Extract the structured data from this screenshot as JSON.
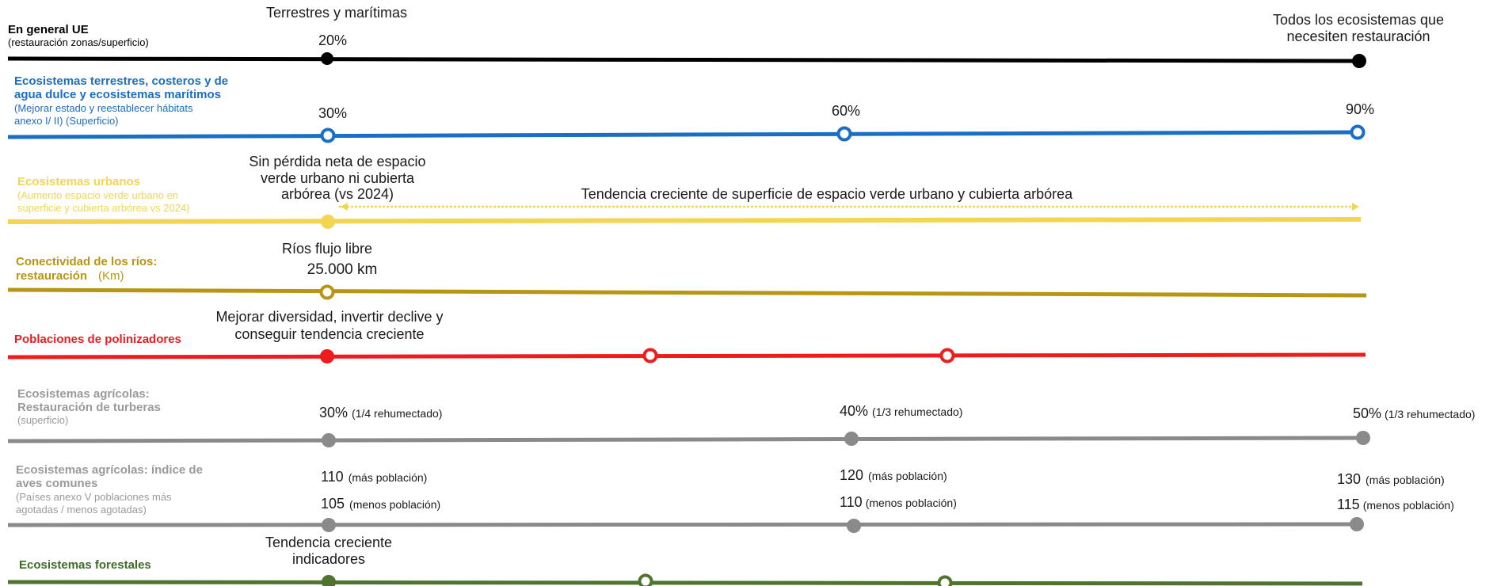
{
  "colors": {
    "eu": "#000000",
    "blue": "#1a6fc4",
    "yellow": "#f2d653",
    "olive": "#b89614",
    "red": "#ee1c1c",
    "grey": "#8a8a8a",
    "greyLabel": "#9a9a9a",
    "green": "#4f7430",
    "greenLabel": "#3f6b25",
    "text": "#1a1a1a"
  },
  "rows": [
    {
      "id": "eu",
      "title_lines": [
        "En general UE"
      ],
      "sub_lines": [
        "(restauración zonas/superficio)"
      ],
      "annotations": [
        {
          "id": "eu-top",
          "lines": [
            "Terrestres y marítimas"
          ]
        },
        {
          "id": "eu-20",
          "lines": [
            "20%"
          ]
        },
        {
          "id": "eu-end",
          "lines": [
            "Todos los ecosistemas que",
            "necesiten restauración"
          ]
        }
      ]
    },
    {
      "id": "blue",
      "title_lines": [
        "Ecosistemas terrestres, costeros y de",
        "agua dulce y ecosistemas marítimos"
      ],
      "sub_lines": [
        "(Mejorar estado y reestablecer hábitats",
        "anexo I/ II) (Superficio)"
      ],
      "annotations": [
        {
          "id": "blue-30",
          "lines": [
            "30%"
          ]
        },
        {
          "id": "blue-60",
          "lines": [
            "60%"
          ]
        },
        {
          "id": "blue-90",
          "lines": [
            "90%"
          ]
        }
      ]
    },
    {
      "id": "yellow",
      "title_lines": [
        "Ecosistemas urbanos"
      ],
      "sub_lines": [
        "(Aumento espacio verde urbano en",
        "superficie y cubierta arbórea vs 2024)"
      ],
      "annotations": [
        {
          "id": "yellow-start",
          "lines": [
            "Sin pérdida neta de espacio",
            "verde urbano ni cubierta",
            "arbórea (vs 2024)"
          ]
        },
        {
          "id": "yellow-trend",
          "lines": [
            "Tendencia creciente de superficie de espacio verde urbano y cubierta arbórea"
          ]
        }
      ]
    },
    {
      "id": "olive",
      "title_lines": [
        "Conectividad de los ríos:",
        "restauración"
      ],
      "sub_lines": [
        "(Km)"
      ],
      "annotations": [
        {
          "id": "olive-start",
          "lines": [
            "Ríos flujo libre",
            "25.000 km"
          ]
        }
      ]
    },
    {
      "id": "red",
      "title_lines": [
        "Poblaciones de polinizadores"
      ],
      "sub_lines": [],
      "annotations": [
        {
          "id": "red-start",
          "lines": [
            "Mejorar diversidad, invertir declive y",
            "conseguir tendencia creciente"
          ]
        }
      ]
    },
    {
      "id": "grey1",
      "title_lines": [
        "Ecosistemas agrícolas:",
        "Restauración de turberas"
      ],
      "sub_lines": [
        "(superficio)"
      ],
      "annotations": [
        {
          "id": "g1-30",
          "value": "30%",
          "note": "(1/4 rehumectado)"
        },
        {
          "id": "g1-40",
          "value": "40%",
          "note": "(1/3 rehumectado)"
        },
        {
          "id": "g1-50",
          "value": "50%",
          "note": "(1/3 rehumectado)"
        }
      ]
    },
    {
      "id": "grey2",
      "title_lines": [
        "Ecosistemas agrícolas: índice de",
        "aves comunes"
      ],
      "sub_lines": [
        "(Países anexo V poblaciones más",
        "agotadas / menos agotadas)"
      ],
      "annotations": [
        {
          "id": "g2-110",
          "value": "110",
          "note": "(más población)"
        },
        {
          "id": "g2-105",
          "value": "105",
          "note": "(menos población)"
        },
        {
          "id": "g2-120",
          "value": "120",
          "note": "(más población)"
        },
        {
          "id": "g2-110b",
          "value": "110",
          "note": "(menos población)"
        },
        {
          "id": "g2-130",
          "value": "130",
          "note": "(más población)"
        },
        {
          "id": "g2-115",
          "value": "115",
          "note": "(menos población)"
        }
      ]
    },
    {
      "id": "green",
      "title_lines": [
        "Ecosistemas forestales"
      ],
      "sub_lines": [],
      "annotations": [
        {
          "id": "green-start",
          "lines": [
            "Tendencia creciente",
            "indicadores"
          ]
        }
      ]
    }
  ]
}
